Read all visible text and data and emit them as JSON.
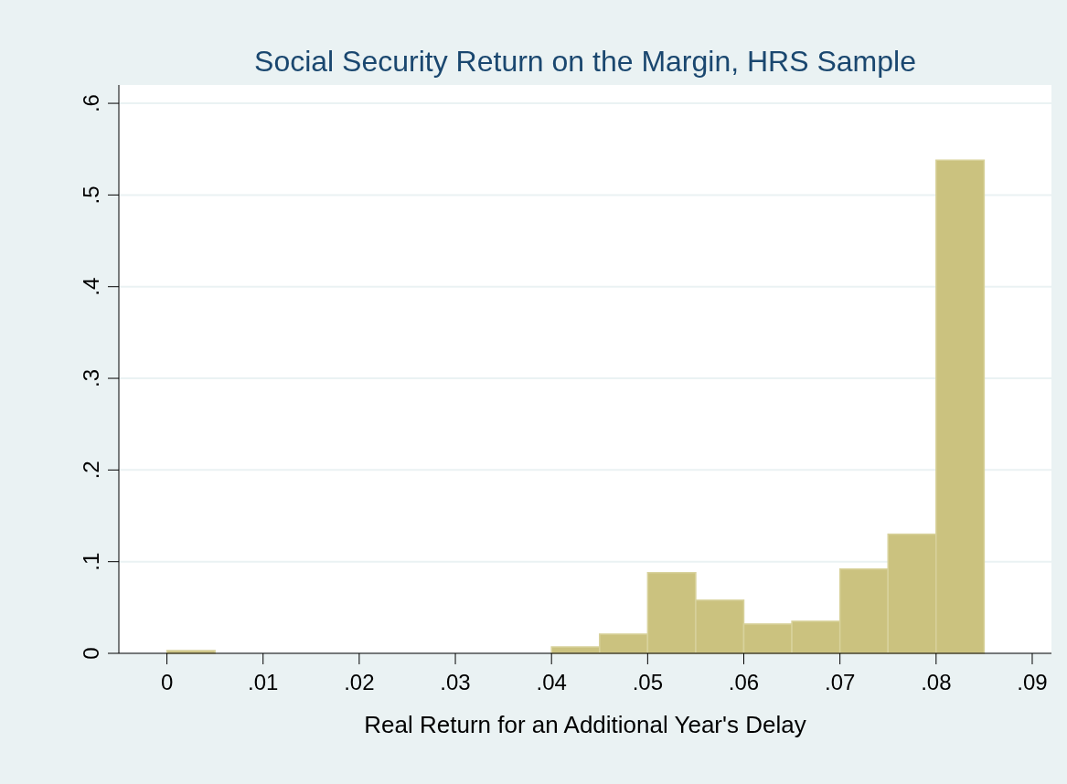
{
  "chart_data": {
    "type": "histogram",
    "title": "Social Security Return on the Margin, HRS Sample",
    "xlabel": "Real Return for an Additional Year's Delay",
    "bins": [
      0,
      0.005,
      0.01,
      0.015,
      0.02,
      0.025,
      0.03,
      0.035,
      0.04,
      0.045,
      0.05,
      0.055,
      0.06,
      0.065,
      0.07,
      0.075,
      0.08,
      0.085
    ],
    "values": [
      0.003,
      0,
      0,
      0,
      0,
      0,
      0,
      0,
      0.007,
      0.021,
      0.088,
      0.058,
      0.032,
      0.035,
      0.092,
      0.13,
      0.538
    ],
    "color": "#cbc27f",
    "xlim": [
      -0.005,
      0.092
    ],
    "ylim": [
      0,
      0.62
    ],
    "xticks": [
      0,
      {
        "value": 0.01,
        "label": ".01"
      },
      {
        "value": 0.02,
        "label": ".02"
      },
      {
        "value": 0.03,
        "label": ".03"
      },
      {
        "value": 0.04,
        "label": ".04"
      },
      {
        "value": 0.05,
        "label": ".05"
      },
      {
        "value": 0.06,
        "label": ".06"
      },
      {
        "value": 0.07,
        "label": ".07"
      },
      {
        "value": 0.08,
        "label": ".08"
      },
      {
        "value": 0.09,
        "label": ".09"
      }
    ],
    "yticks": [
      0,
      {
        "value": 0.1,
        "label": ".1"
      },
      {
        "value": 0.2,
        "label": ".2"
      },
      {
        "value": 0.3,
        "label": ".3"
      },
      {
        "value": 0.4,
        "label": ".4"
      },
      {
        "value": 0.5,
        "label": ".5"
      },
      {
        "value": 0.6,
        "label": ".6"
      }
    ],
    "grid": "y"
  }
}
